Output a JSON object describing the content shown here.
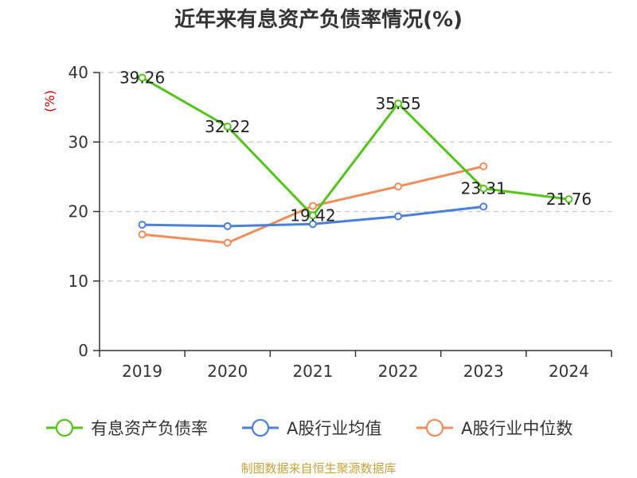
{
  "chart_data": {
    "type": "line",
    "title": "近年来有息资产负债率情况(%)",
    "ylabel": "(%)",
    "xlabel": "",
    "categories": [
      "2019",
      "2020",
      "2021",
      "2022",
      "2023",
      "2024"
    ],
    "ylim": [
      0,
      40
    ],
    "yticks": [
      0,
      10,
      20,
      30,
      40
    ],
    "grid": true,
    "legend": "bottom",
    "series": [
      {
        "name": "有息资产负债率",
        "color": "#52c41a",
        "values": [
          39.26,
          32.22,
          19.42,
          35.55,
          23.31,
          21.76
        ],
        "labels": [
          "39.26",
          "32.22",
          "19.42",
          "35.55",
          "23.31",
          "21.76"
        ]
      },
      {
        "name": "A股行业均值",
        "color": "#4a7fdc",
        "values": [
          18.1,
          17.9,
          18.2,
          19.3,
          20.7,
          null
        ]
      },
      {
        "name": "A股行业中位数",
        "color": "#f28c5a",
        "values": [
          16.7,
          15.5,
          20.8,
          23.6,
          26.5,
          null
        ]
      }
    ]
  },
  "source": "制图数据来自恒生聚源数据库"
}
